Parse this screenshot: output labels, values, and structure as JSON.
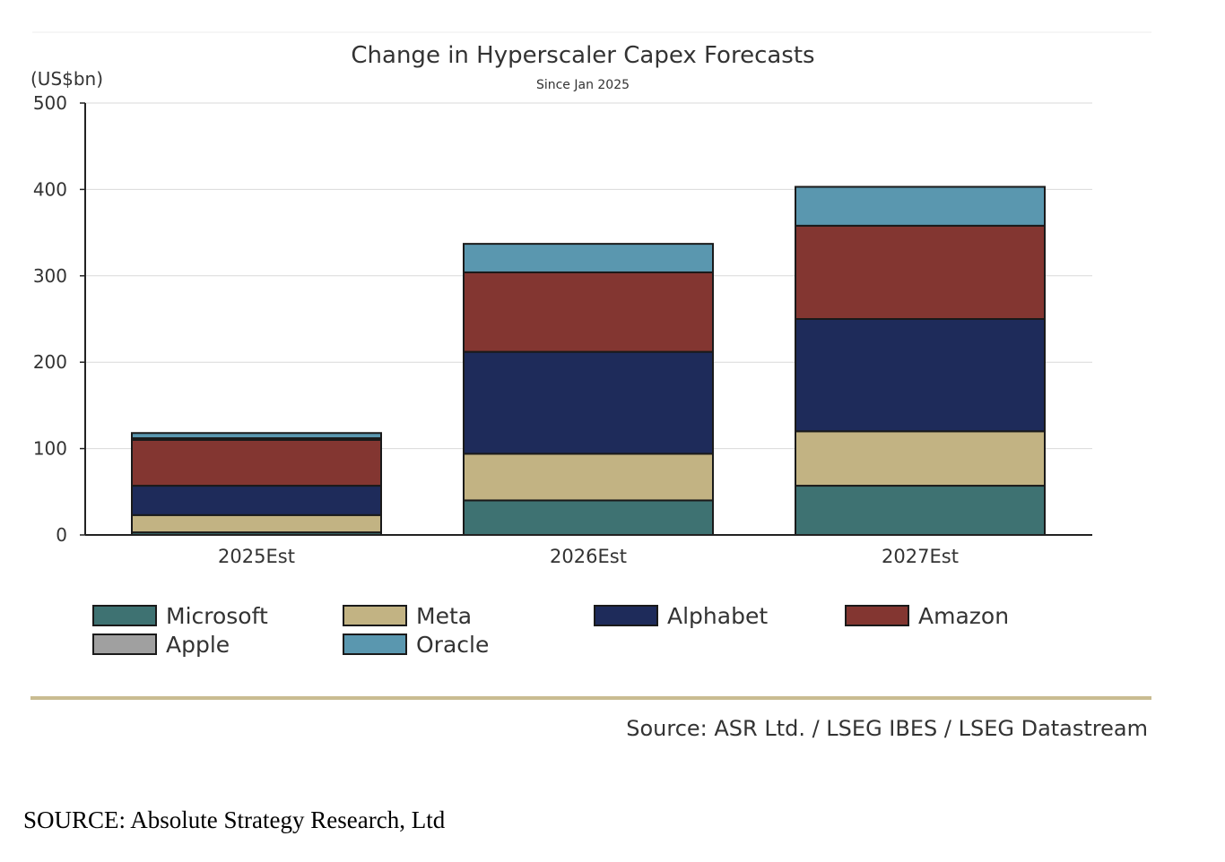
{
  "chart_data": {
    "type": "bar",
    "stacked": true,
    "title": "Change in Hyperscaler Capex Forecasts",
    "subtitle": "Since Jan 2025",
    "ylabel": "(US$bn)",
    "ylim": [
      0,
      500
    ],
    "yticks": [
      0,
      100,
      200,
      300,
      400,
      500
    ],
    "grid": true,
    "legend_position": "bottom",
    "categories": [
      "2025Est",
      "2026Est",
      "2027Est"
    ],
    "series": [
      {
        "name": "Microsoft",
        "color": "#3E7272",
        "values": [
          3,
          40,
          57
        ]
      },
      {
        "name": "Meta",
        "color": "#C2B383",
        "values": [
          20,
          54,
          63
        ]
      },
      {
        "name": "Alphabet",
        "color": "#1E2B5A",
        "values": [
          34,
          118,
          130
        ]
      },
      {
        "name": "Amazon",
        "color": "#833631",
        "values": [
          53,
          92,
          108
        ]
      },
      {
        "name": "Apple",
        "color": "#A0A0A0",
        "values": [
          2,
          0,
          0
        ]
      },
      {
        "name": "Oracle",
        "color": "#5A97AF",
        "values": [
          6,
          33,
          45
        ]
      }
    ],
    "source": "Source: ASR Ltd. / LSEG IBES / LSEG Datastream"
  },
  "footer_source": "SOURCE: Absolute Strategy Research, Ltd"
}
